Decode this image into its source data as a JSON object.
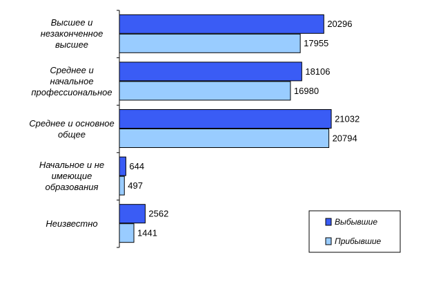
{
  "chart_data": {
    "type": "bar",
    "orientation": "horizontal",
    "categories": [
      "Высшее и\nнезаконченное\nвысшее",
      "Среднее и\nначальное\nпрофессиональное",
      "Среднее и основное\nобщее",
      "Начальное и не\nимеющие\nобразования",
      "Неизвестно"
    ],
    "series": [
      {
        "name": "Выбывшие",
        "color": "#3a5cf5",
        "values": [
          20296,
          18106,
          21032,
          644,
          2562
        ]
      },
      {
        "name": "Прибывшие",
        "color": "#99ccff",
        "values": [
          17955,
          16980,
          20794,
          497,
          1441
        ]
      }
    ],
    "xlim": [
      0,
      25000
    ],
    "legend": "lower right"
  }
}
